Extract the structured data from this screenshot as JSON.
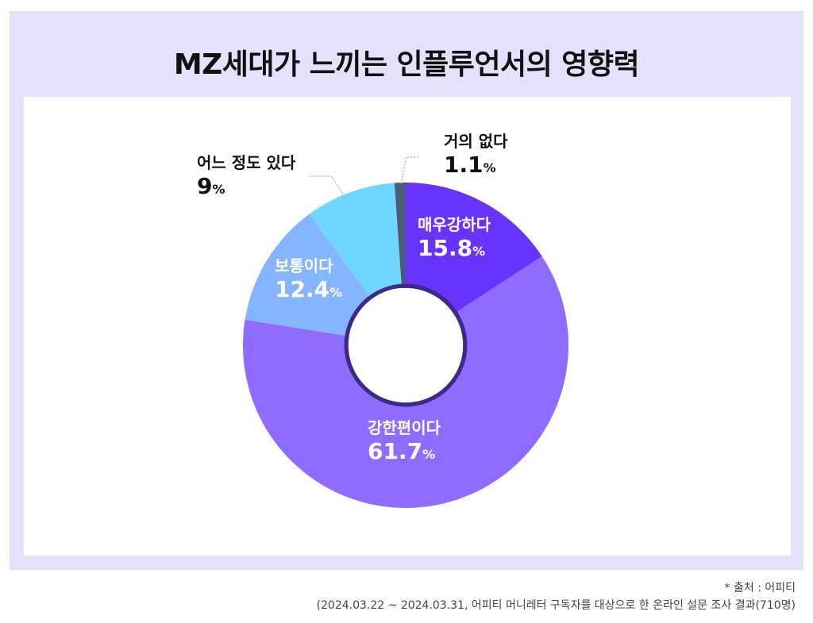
{
  "title": "MZ세대가 느끼는 인플루언서의 영향력",
  "chart_data": {
    "type": "pie",
    "title": "MZ세대가 느끼는 인플루언서의 영향력",
    "unit": "%",
    "slices": [
      {
        "label": "매우강하다",
        "value": 15.8,
        "display": "15.8",
        "color": "#6633ff"
      },
      {
        "label": "강한편이다",
        "value": 61.7,
        "display": "61.7",
        "color": "#8f6cff"
      },
      {
        "label": "보통이다",
        "value": 12.4,
        "display": "12.4",
        "color": "#85b5ff"
      },
      {
        "label": "어느 정도 있다",
        "value": 9.0,
        "display": "9",
        "color": "#6fd6ff"
      },
      {
        "label": "거의 없다",
        "value": 1.1,
        "display": "1.1",
        "color": "#4a5c7a"
      }
    ]
  },
  "footer": {
    "source": "* 출처 : 어피티",
    "note": "(2024.03.22 ~ 2024.03.31, 어피티 머니레터 구독자를 대상으로 한 온라인 설문 조사 결과(710명)"
  }
}
